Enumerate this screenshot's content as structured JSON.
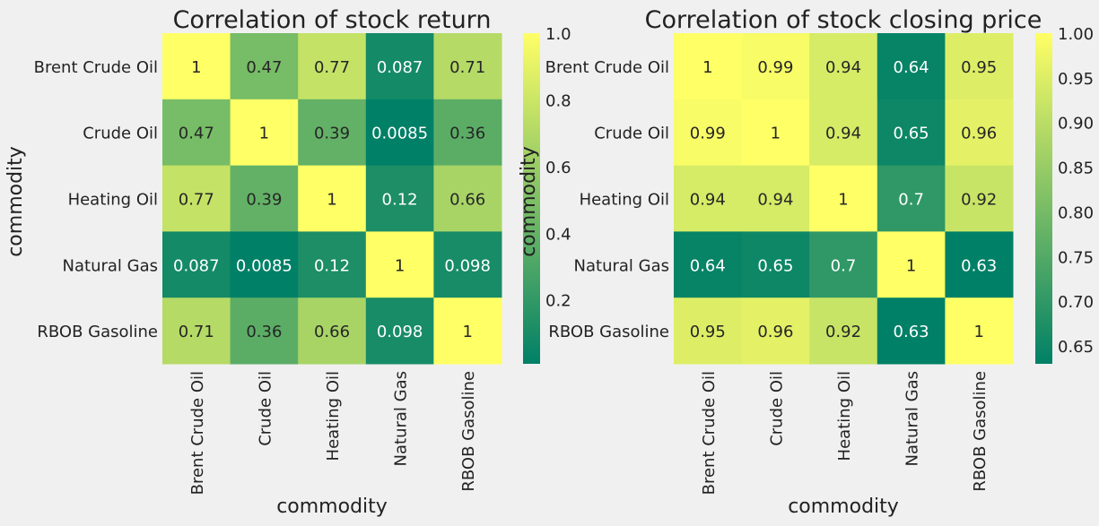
{
  "background": "#f0f0f0",
  "colormap": [
    "#008066",
    "#80c066",
    "#ffff66"
  ],
  "chart_data": [
    {
      "type": "heatmap",
      "title": "Correlation of stock return",
      "xlabel": "commodity",
      "ylabel": "commodity",
      "categories": [
        "Brent Crude Oil",
        "Crude Oil",
        "Heating Oil",
        "Natural Gas",
        "RBOB Gasoline"
      ],
      "values": [
        [
          1,
          0.47,
          0.77,
          0.087,
          0.71
        ],
        [
          0.47,
          1,
          0.39,
          0.0085,
          0.36
        ],
        [
          0.77,
          0.39,
          1,
          0.12,
          0.66
        ],
        [
          0.087,
          0.0085,
          0.12,
          1,
          0.098
        ],
        [
          0.71,
          0.36,
          0.66,
          0.098,
          1
        ]
      ],
      "labels": [
        [
          "1",
          "0.47",
          "0.77",
          "0.087",
          "0.71"
        ],
        [
          "0.47",
          "1",
          "0.39",
          "0.0085",
          "0.36"
        ],
        [
          "0.77",
          "0.39",
          "1",
          "0.12",
          "0.66"
        ],
        [
          "0.087",
          "0.0085",
          "0.12",
          "1",
          "0.098"
        ],
        [
          "0.71",
          "0.36",
          "0.66",
          "0.098",
          "1"
        ]
      ],
      "colorbar": {
        "min": 0.0085,
        "max": 1.0,
        "ticks": [
          "0.2",
          "0.4",
          "0.6",
          "0.8",
          "1.0"
        ]
      }
    },
    {
      "type": "heatmap",
      "title": "Correlation of stock closing price",
      "xlabel": "commodity",
      "ylabel": "commodity",
      "categories": [
        "Brent Crude Oil",
        "Crude Oil",
        "Heating Oil",
        "Natural Gas",
        "RBOB Gasoline"
      ],
      "values": [
        [
          1,
          0.99,
          0.94,
          0.64,
          0.95
        ],
        [
          0.99,
          1,
          0.94,
          0.65,
          0.96
        ],
        [
          0.94,
          0.94,
          1,
          0.7,
          0.92
        ],
        [
          0.64,
          0.65,
          0.7,
          1,
          0.63
        ],
        [
          0.95,
          0.96,
          0.92,
          0.63,
          1
        ]
      ],
      "labels": [
        [
          "1",
          "0.99",
          "0.94",
          "0.64",
          "0.95"
        ],
        [
          "0.99",
          "1",
          "0.94",
          "0.65",
          "0.96"
        ],
        [
          "0.94",
          "0.94",
          "1",
          "0.7",
          "0.92"
        ],
        [
          "0.64",
          "0.65",
          "0.7",
          "1",
          "0.63"
        ],
        [
          "0.95",
          "0.96",
          "0.92",
          "0.63",
          "1"
        ]
      ],
      "colorbar": {
        "min": 0.63,
        "max": 1.0,
        "ticks": [
          "0.65",
          "0.70",
          "0.75",
          "0.80",
          "0.85",
          "0.90",
          "0.95",
          "1.00"
        ]
      }
    }
  ]
}
